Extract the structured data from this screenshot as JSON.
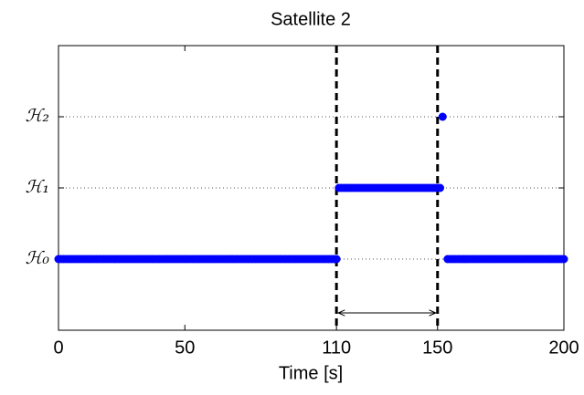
{
  "chart_data": {
    "type": "scatter",
    "title": "Satellite 2",
    "x_label": "Time [s]",
    "xlim": [
      0,
      200
    ],
    "ylim": [
      -1,
      3
    ],
    "xticks": [
      0,
      50,
      110,
      150,
      200
    ],
    "yticks": [
      {
        "value": 0,
        "label": "ℋ₀"
      },
      {
        "value": 1,
        "label": "ℋ₁"
      },
      {
        "value": 2,
        "label": "ℋ₂"
      }
    ],
    "grid": true,
    "vlines": [
      110,
      150
    ],
    "series": [
      {
        "color": "#0000ff",
        "x": [
          0,
          1,
          2,
          3,
          4,
          5,
          6,
          7,
          8,
          9,
          10,
          11,
          12,
          13,
          14,
          15,
          16,
          17,
          18,
          19,
          20,
          21,
          22,
          23,
          24,
          25,
          26,
          27,
          28,
          29,
          30,
          31,
          32,
          33,
          34,
          35,
          36,
          37,
          38,
          39,
          40,
          41,
          42,
          43,
          44,
          45,
          46,
          47,
          48,
          49,
          50,
          51,
          52,
          53,
          54,
          55,
          56,
          57,
          58,
          59,
          60,
          61,
          62,
          63,
          64,
          65,
          66,
          67,
          68,
          69,
          70,
          71,
          72,
          73,
          74,
          75,
          76,
          77,
          78,
          79,
          80,
          81,
          82,
          83,
          84,
          85,
          86,
          87,
          88,
          89,
          90,
          91,
          92,
          93,
          94,
          95,
          96,
          97,
          98,
          99,
          100,
          101,
          102,
          103,
          104,
          105,
          106,
          107,
          108,
          109,
          110,
          111,
          112,
          113,
          114,
          115,
          116,
          117,
          118,
          119,
          120,
          121,
          122,
          123,
          124,
          125,
          126,
          127,
          128,
          129,
          130,
          131,
          132,
          133,
          134,
          135,
          136,
          137,
          138,
          139,
          140,
          141,
          142,
          143,
          144,
          145,
          146,
          147,
          148,
          149,
          150,
          151,
          152,
          154,
          155,
          156,
          157,
          158,
          159,
          160,
          161,
          162,
          163,
          164,
          165,
          166,
          167,
          168,
          169,
          170,
          171,
          172,
          173,
          174,
          175,
          176,
          177,
          178,
          179,
          180,
          181,
          182,
          183,
          184,
          185,
          186,
          187,
          188,
          189,
          190,
          191,
          192,
          193,
          194,
          195,
          196,
          197,
          198,
          199,
          200
        ],
        "values": [
          0,
          0,
          0,
          0,
          0,
          0,
          0,
          0,
          0,
          0,
          0,
          0,
          0,
          0,
          0,
          0,
          0,
          0,
          0,
          0,
          0,
          0,
          0,
          0,
          0,
          0,
          0,
          0,
          0,
          0,
          0,
          0,
          0,
          0,
          0,
          0,
          0,
          0,
          0,
          0,
          0,
          0,
          0,
          0,
          0,
          0,
          0,
          0,
          0,
          0,
          0,
          0,
          0,
          0,
          0,
          0,
          0,
          0,
          0,
          0,
          0,
          0,
          0,
          0,
          0,
          0,
          0,
          0,
          0,
          0,
          0,
          0,
          0,
          0,
          0,
          0,
          0,
          0,
          0,
          0,
          0,
          0,
          0,
          0,
          0,
          0,
          0,
          0,
          0,
          0,
          0,
          0,
          0,
          0,
          0,
          0,
          0,
          0,
          0,
          0,
          0,
          0,
          0,
          0,
          0,
          0,
          0,
          0,
          0,
          0,
          0,
          1,
          1,
          1,
          1,
          1,
          1,
          1,
          1,
          1,
          1,
          1,
          1,
          1,
          1,
          1,
          1,
          1,
          1,
          1,
          1,
          1,
          1,
          1,
          1,
          1,
          1,
          1,
          1,
          1,
          1,
          1,
          1,
          1,
          1,
          1,
          1,
          1,
          1,
          1,
          1,
          1,
          2,
          0,
          0,
          0,
          0,
          0,
          0,
          0,
          0,
          0,
          0,
          0,
          0,
          0,
          0,
          0,
          0,
          0,
          0,
          0,
          0,
          0,
          0,
          0,
          0,
          0,
          0,
          0,
          0,
          0,
          0,
          0,
          0,
          0,
          0,
          0,
          0,
          0,
          0,
          0,
          0,
          0,
          0,
          0,
          0,
          0,
          0,
          0
        ]
      }
    ]
  }
}
